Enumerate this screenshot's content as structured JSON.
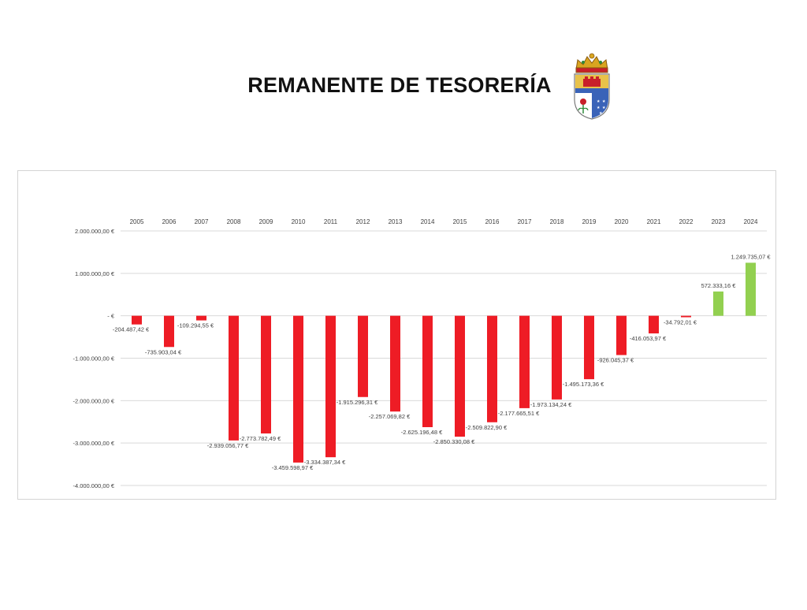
{
  "page": {
    "title": "REMANENTE DE TESORERÍA"
  },
  "logo": {
    "name": "municipal-coat-of-arms",
    "colors": {
      "crown": "#d9a520",
      "upper_field": "#e8c24a",
      "lower_field": "#3a63b8",
      "red": "#c8202a",
      "green": "#2e8b3a"
    }
  },
  "chart_data": {
    "type": "bar",
    "title": "",
    "xlabel": "",
    "ylabel": "",
    "categories": [
      "2005",
      "2006",
      "2007",
      "2008",
      "2009",
      "2010",
      "2011",
      "2012",
      "2013",
      "2014",
      "2015",
      "2016",
      "2017",
      "2018",
      "2019",
      "2020",
      "2021",
      "2022",
      "2023",
      "2024"
    ],
    "values": [
      -204487.42,
      -735903.04,
      -109294.55,
      -2939056.77,
      -2773782.49,
      -3459598.97,
      -3334387.34,
      -1915296.31,
      -2257069.82,
      -2625196.48,
      -2850330.08,
      -2509822.9,
      -2177665.51,
      -1973134.24,
      -1495173.36,
      -926045.37,
      -416053.97,
      -34792.01,
      572333.16,
      1249735.07
    ],
    "data_labels": [
      "-204.487,42 €",
      "-735.903,04 €",
      "-109.294,55 €",
      "-2.939.056,77 €",
      "-2.773.782,49 €",
      "-3.459.598,97 €",
      "-3.334.387,34 €",
      "-1.915.296,31 €",
      "-2.257.069,82 €",
      "-2.625.196,48 €",
      "-2.850.330,08 €",
      "-2.509.822,90 €",
      "-2.177.665,51 €",
      "-1.973.134,24 €",
      "-1.495.173,36 €",
      "-926.045,37 €",
      "-416.053,97 €",
      "-34.792,01 €",
      "572.333,16 €",
      "1.249.735,07 €"
    ],
    "ylim": [
      -4000000,
      2000000
    ],
    "y_ticks": [
      2000000,
      1000000,
      0,
      -1000000,
      -2000000,
      -3000000,
      -4000000
    ],
    "y_tick_labels": [
      "2.000.000,00 €",
      "1.000.000,00 €",
      "-   €",
      "-1.000.000,00 €",
      "-2.000.000,00 €",
      "-3.000.000,00 €",
      "-4.000.000,00 €"
    ],
    "category_axis_position": "top",
    "grid": true,
    "legend": "none",
    "colors": {
      "negative": "#ee1c25",
      "positive": "#92d050",
      "grid": "#d9d9d9"
    }
  }
}
